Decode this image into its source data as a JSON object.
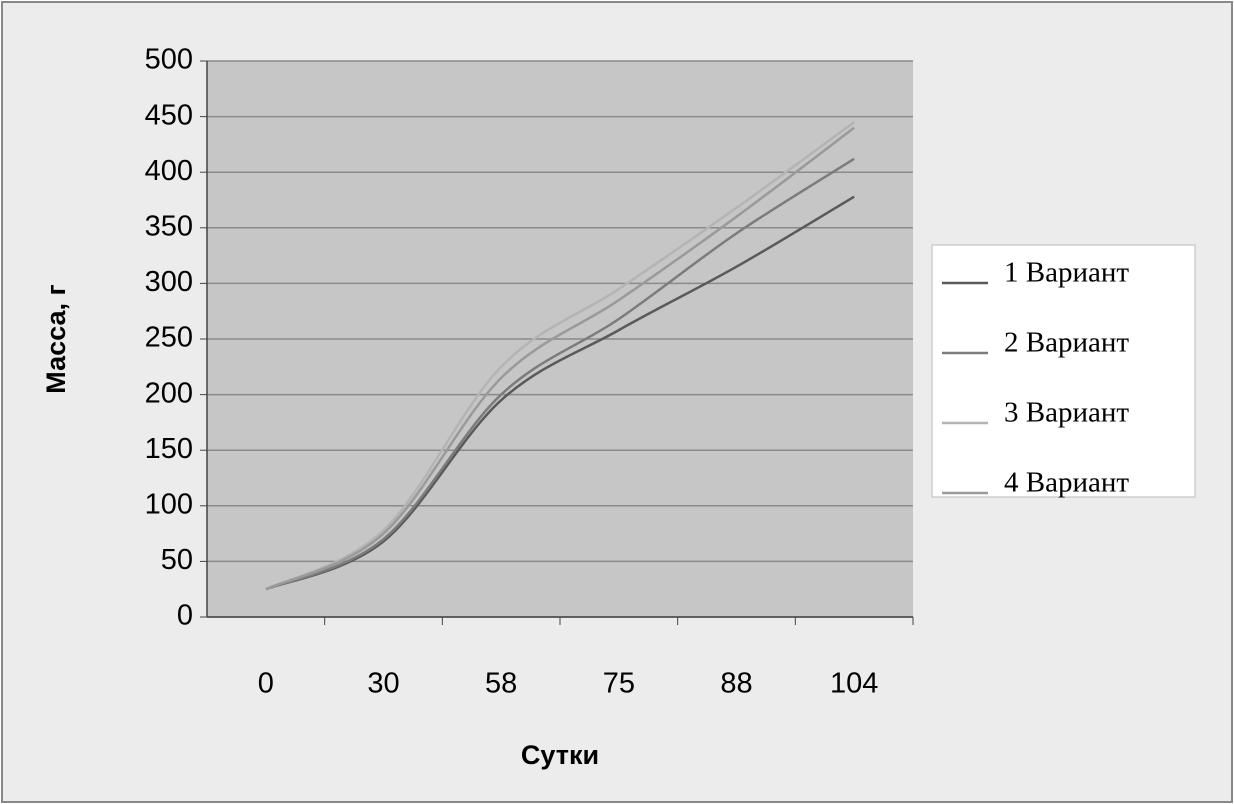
{
  "chart_data": {
    "type": "line",
    "x_label": "Сутки",
    "y_label": "Масса, г",
    "categories": [
      "0",
      "30",
      "58",
      "75",
      "88",
      "104"
    ],
    "series": [
      {
        "name": "1 Вариант",
        "color": "#5a5a5a",
        "values": [
          25,
          68,
          195,
          258,
          315,
          378
        ]
      },
      {
        "name": "2 Вариант",
        "color": "#7c7c7c",
        "values": [
          25,
          70,
          200,
          268,
          345,
          412
        ]
      },
      {
        "name": "3 Вариант",
        "color": "#b4b4b4",
        "values": [
          25,
          78,
          225,
          295,
          368,
          445
        ]
      },
      {
        "name": "4 Вариант",
        "color": "#9a9a9a",
        "values": [
          25,
          75,
          215,
          285,
          360,
          440
        ]
      }
    ],
    "ylim": [
      0,
      500
    ],
    "yticks": [
      0,
      50,
      100,
      150,
      200,
      250,
      300,
      350,
      400,
      450,
      500
    ],
    "grid": true,
    "legend": "right"
  }
}
